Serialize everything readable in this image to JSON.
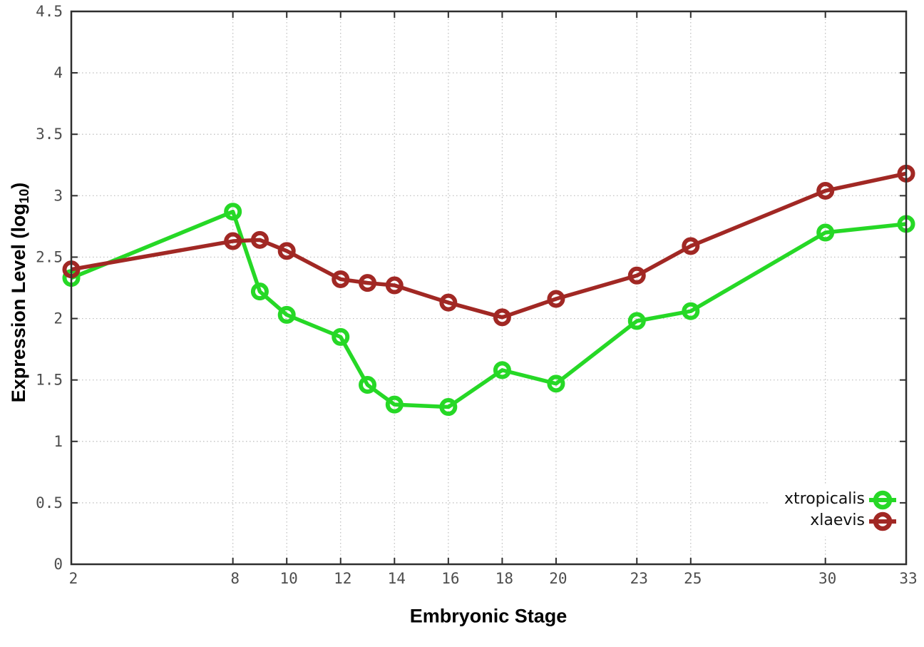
{
  "labels": {
    "xlabel": "Embryonic Stage",
    "ylabel_prefix": "Expression Level (log",
    "ylabel_sub": "10",
    "ylabel_suffix": ")"
  },
  "colors": {
    "background": "#ffffff",
    "axis": "#2e2e2e",
    "grid": "#bdbdbd",
    "tick_label": "#4d4d4d",
    "legend_text": "#111111",
    "xtropicalis_green": "#26d826",
    "xlaevis_red": "#a12824"
  },
  "chart_data": {
    "type": "line",
    "title": "",
    "xlabel": "Embryonic Stage",
    "ylabel": "Expression Level (log10)",
    "xlim": [
      2,
      33
    ],
    "ylim": [
      0,
      4.5
    ],
    "grid": true,
    "legend_position": "inside-bottom-right",
    "x": [
      2,
      8,
      9,
      10,
      12,
      13,
      14,
      16,
      18,
      20,
      23,
      25,
      30,
      33
    ],
    "series": [
      {
        "name": "xtropicalis",
        "color": "#26d826",
        "values": [
          2.33,
          2.87,
          2.22,
          2.03,
          1.85,
          1.46,
          1.3,
          1.28,
          1.58,
          1.47,
          1.98,
          2.06,
          2.7,
          2.77
        ]
      },
      {
        "name": "xlaevis",
        "color": "#a12824",
        "values": [
          2.4,
          2.63,
          2.64,
          2.55,
          2.32,
          2.29,
          2.27,
          2.13,
          2.01,
          2.16,
          2.35,
          2.59,
          3.04,
          3.18
        ]
      }
    ],
    "x_tick_values": [
      2,
      8,
      10,
      12,
      14,
      16,
      18,
      20,
      23,
      25,
      30,
      33
    ],
    "x_ticks": [
      "2",
      "8",
      "10",
      "12",
      "14",
      "16",
      "18",
      "20",
      "23",
      "25",
      "30",
      "33"
    ],
    "y_tick_values": [
      0,
      0.5,
      1,
      1.5,
      2,
      2.5,
      3,
      3.5,
      4,
      4.5
    ],
    "y_ticks": [
      "0",
      "0.5",
      "1",
      "1.5",
      "2",
      "2.5",
      "3",
      "3.5",
      "4",
      "4.5"
    ]
  }
}
